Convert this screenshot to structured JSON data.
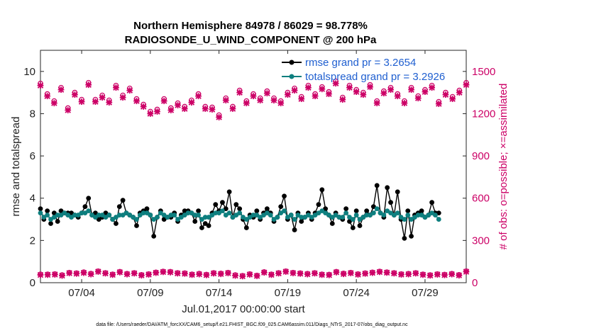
{
  "chart_data": {
    "type": "line",
    "title_line1": "Northern Hemisphere 84978 / 86029 = 98.778%",
    "title_line2": "RADIOSONDE_U_WIND_COMPONENT @ 200 hPa",
    "xlabel": "Jul.01,2017 00:00:00 start",
    "ylabel_left": "rmse and totalspread",
    "ylabel_right": "# of obs: o=possible; ×=assimilated",
    "footnote": "data file: /Users/raeder/DAI/ATM_forcXX/CAM6_setup/f.e21.FHIST_BGC.f09_025.CAM6assim.011/Diags_NTrS_2017-07/obs_diag_output.nc",
    "x_range_days": [
      0.5,
      31.5
    ],
    "x_ticks": [
      {
        "day": 3.5,
        "label": "07/04"
      },
      {
        "day": 8.5,
        "label": "07/09"
      },
      {
        "day": 13.5,
        "label": "07/14"
      },
      {
        "day": 18.5,
        "label": "07/19"
      },
      {
        "day": 23.5,
        "label": "07/24"
      },
      {
        "day": 28.5,
        "label": "07/29"
      }
    ],
    "ylim_left": [
      0,
      11
    ],
    "yticks_left": [
      0,
      2,
      4,
      6,
      8,
      10
    ],
    "ylim_right": [
      0,
      1650
    ],
    "yticks_right": [
      0,
      300,
      600,
      900,
      1200,
      1500
    ],
    "x_step_days": 0.25,
    "x_start_day": 0.5,
    "legend": {
      "location": "top-right",
      "rmse_label": "rmse grand pr = 3.2654",
      "spread_label": "totalspread grand pr = 3.2926"
    },
    "colors": {
      "rmse": "#000000",
      "spread": "#0e7f7f",
      "obs": "#cc0066",
      "legend_text": "#1f5fd0"
    },
    "series": [
      {
        "name": "rmse",
        "axis": "left",
        "values": [
          3.5,
          3.0,
          3.4,
          2.8,
          3.3,
          2.9,
          3.4,
          3.3,
          3.3,
          3.3,
          3.2,
          3.1,
          3.3,
          3.6,
          4.0,
          3.2,
          3.3,
          3.0,
          3.1,
          3.3,
          3.2,
          3.0,
          2.8,
          3.6,
          3.9,
          3.3,
          3.2,
          3.1,
          2.7,
          3.3,
          3.4,
          3.5,
          3.2,
          2.2,
          3.1,
          3.4,
          3.0,
          3.1,
          3.1,
          3.3,
          2.9,
          3.2,
          3.4,
          3.4,
          3.3,
          2.9,
          3.4,
          2.6,
          2.8,
          2.7,
          3.3,
          3.7,
          3.4,
          3.8,
          3.5,
          4.3,
          3.1,
          3.7,
          3.5,
          3.0,
          2.6,
          3.2,
          3.1,
          3.4,
          3.0,
          3.3,
          3.5,
          3.3,
          2.9,
          3.1,
          3.6,
          4.1,
          3.0,
          3.2,
          2.5,
          3.3,
          2.9,
          3.1,
          3.3,
          3.0,
          3.3,
          3.7,
          4.4,
          3.5,
          3.2,
          2.8,
          3.3,
          3.1,
          3.0,
          3.5,
          2.9,
          2.6,
          3.4,
          2.7,
          3.1,
          3.4,
          3.2,
          3.6,
          4.6,
          3.3,
          3.1,
          4.5,
          3.8,
          3.2,
          4.3,
          3.0,
          2.1,
          3.4,
          2.2,
          3.2,
          3.3,
          3.4,
          3.1,
          3.2,
          3.8,
          3.3,
          3.3
        ]
      },
      {
        "name": "totalspread",
        "axis": "left",
        "values": [
          3.3,
          3.1,
          3.2,
          3.0,
          3.1,
          3.2,
          3.2,
          3.3,
          3.2,
          3.1,
          3.2,
          3.2,
          3.3,
          3.3,
          3.4,
          3.2,
          3.1,
          3.2,
          3.2,
          3.1,
          3.2,
          3.0,
          3.1,
          3.2,
          3.2,
          3.3,
          3.2,
          3.1,
          3.0,
          3.2,
          3.3,
          3.3,
          3.2,
          3.0,
          3.1,
          3.3,
          3.2,
          3.1,
          3.2,
          3.2,
          3.0,
          3.1,
          3.2,
          3.3,
          3.3,
          3.2,
          3.2,
          3.0,
          3.1,
          3.1,
          3.2,
          3.3,
          3.3,
          3.4,
          3.2,
          3.3,
          3.1,
          3.2,
          3.3,
          3.1,
          3.0,
          3.1,
          3.2,
          3.2,
          3.1,
          3.2,
          3.3,
          3.2,
          3.0,
          3.1,
          3.3,
          3.4,
          3.1,
          3.2,
          3.0,
          3.2,
          3.1,
          3.1,
          3.2,
          3.1,
          3.2,
          3.3,
          3.4,
          3.3,
          3.2,
          3.1,
          3.2,
          3.1,
          3.1,
          3.3,
          3.1,
          3.0,
          3.2,
          3.0,
          3.1,
          3.2,
          3.2,
          3.3,
          3.5,
          3.3,
          3.2,
          3.4,
          3.3,
          3.2,
          3.3,
          3.1,
          3.0,
          3.2,
          3.0,
          3.1,
          3.2,
          3.2,
          3.1,
          3.2,
          3.3,
          3.2,
          3.0
        ]
      },
      {
        "name": "obs_possible_high",
        "axis": "right",
        "values": [
          1415,
          1340,
          1290,
          1385,
          1240,
          1350,
          1300,
          1420,
          1300,
          1330,
          1295,
          1400,
          1330,
          1380,
          1305,
          1265,
          1215,
          1230,
          1305,
          1240,
          1275,
          1250,
          1295,
          1340,
          1250,
          1245,
          1190,
          1310,
          1250,
          1365,
          1290,
          1340,
          1310,
          1360,
          1310,
          1290,
          1350,
          1380,
          1320,
          1400,
          1340,
          1390,
          1355,
          1430,
          1315,
          1400,
          1370,
          1350,
          1405,
          1290,
          1360,
          1385,
          1340,
          1290,
          1385,
          1325,
          1370,
          1400,
          1285,
          1350,
          1320,
          1365,
          1420
        ]
      },
      {
        "name": "obs_assimilated_high",
        "axis": "right",
        "values": [
          1400,
          1325,
          1275,
          1370,
          1225,
          1335,
          1285,
          1405,
          1285,
          1315,
          1280,
          1385,
          1315,
          1365,
          1290,
          1250,
          1200,
          1215,
          1290,
          1225,
          1260,
          1235,
          1280,
          1325,
          1235,
          1230,
          1175,
          1295,
          1235,
          1350,
          1275,
          1325,
          1295,
          1345,
          1295,
          1275,
          1335,
          1365,
          1305,
          1385,
          1325,
          1375,
          1340,
          1415,
          1300,
          1385,
          1355,
          1335,
          1390,
          1275,
          1345,
          1370,
          1325,
          1275,
          1370,
          1310,
          1355,
          1385,
          1270,
          1335,
          1305,
          1350,
          1405
        ]
      },
      {
        "name": "obs_possible_low",
        "axis": "right",
        "values": [
          60,
          60,
          62,
          55,
          72,
          68,
          75,
          65,
          82,
          70,
          60,
          78,
          64,
          70,
          56,
          62,
          74,
          80,
          78,
          70,
          68,
          60,
          65,
          58,
          70,
          66,
          72,
          55,
          50,
          62,
          52,
          76,
          60,
          70,
          82,
          72,
          68,
          64,
          70,
          60,
          58,
          78,
          66,
          72,
          62,
          68,
          74,
          80,
          75,
          70,
          62,
          64,
          70,
          60,
          55,
          62,
          58,
          64,
          56,
          82
        ]
      },
      {
        "name": "obs_assimilated_low",
        "axis": "right",
        "values": [
          55,
          56,
          58,
          50,
          68,
          64,
          70,
          60,
          78,
          66,
          56,
          74,
          60,
          66,
          52,
          58,
          70,
          76,
          74,
          66,
          64,
          56,
          60,
          54,
          66,
          62,
          68,
          50,
          46,
          58,
          48,
          72,
          56,
          66,
          78,
          68,
          64,
          60,
          66,
          56,
          54,
          74,
          62,
          68,
          58,
          64,
          70,
          76,
          71,
          66,
          58,
          60,
          66,
          56,
          51,
          58,
          54,
          60,
          52,
          78
        ]
      }
    ]
  }
}
